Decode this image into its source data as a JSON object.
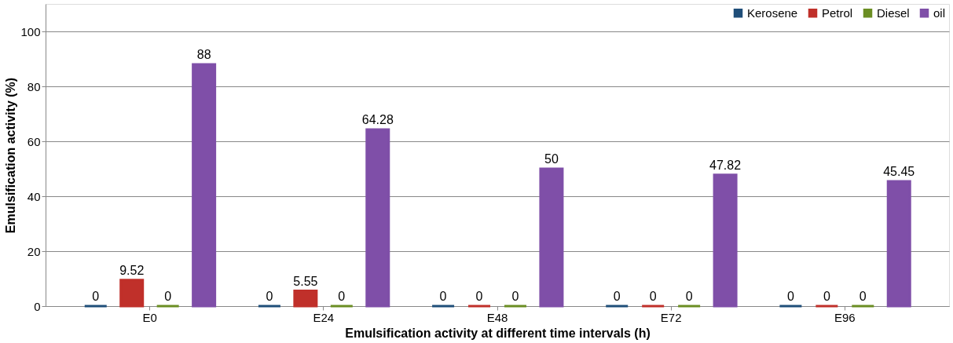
{
  "chart_data": {
    "type": "bar",
    "xlabel": "Emulsification activity at different time intervals (h)",
    "ylabel": "Emulsification activity (%)",
    "categories": [
      "E0",
      "E24",
      "E48",
      "E72",
      "E96"
    ],
    "series": [
      {
        "name": "Kerosene",
        "color": "#1f4e79",
        "values": [
          0,
          0,
          0,
          0,
          0
        ]
      },
      {
        "name": "Petrol",
        "color": "#c0302a",
        "values": [
          9.52,
          5.55,
          0,
          0,
          0
        ]
      },
      {
        "name": "Diesel",
        "color": "#6b8e23",
        "values": [
          0,
          0,
          0,
          0,
          0
        ]
      },
      {
        "name": "oil",
        "color": "#7f4fa8",
        "values": [
          88,
          64.28,
          50,
          47.82,
          45.45
        ]
      }
    ],
    "ylim": [
      0,
      110
    ],
    "yticks": [
      0,
      20,
      40,
      60,
      80,
      100
    ],
    "grid": "y",
    "legend": "top right",
    "data_labels": true
  }
}
